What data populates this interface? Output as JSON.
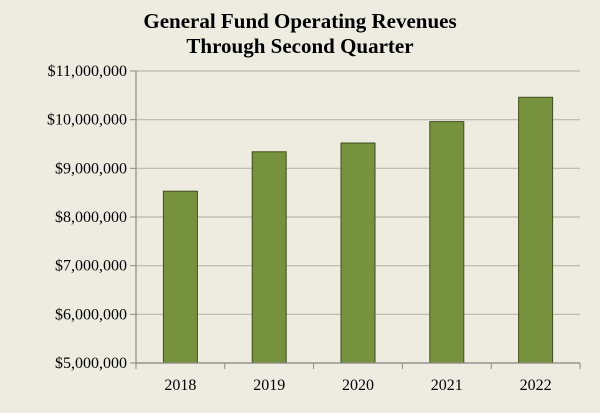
{
  "chart_data": {
    "type": "bar",
    "title_lines": [
      "General Fund Operating Revenues",
      "Through Second Quarter"
    ],
    "categories": [
      "2018",
      "2019",
      "2020",
      "2021",
      "2022"
    ],
    "values": [
      8530000,
      9340000,
      9520000,
      9960000,
      10460000
    ],
    "ylim": [
      5000000,
      11000000
    ],
    "yticks": [
      5000000,
      6000000,
      7000000,
      8000000,
      9000000,
      10000000,
      11000000
    ],
    "ytick_labels": [
      "$5,000,000",
      "$6,000,000",
      "$7,000,000",
      "$8,000,000",
      "$9,000,000",
      "$10,000,000",
      "$11,000,000"
    ],
    "grid": true,
    "legend": "none",
    "colors": {
      "bar_fill": "#76923c",
      "bar_stroke": "#3f4f1f",
      "grid": "#b8b6ae",
      "axis": "#8c8a84",
      "background": "#eeebe1"
    }
  }
}
